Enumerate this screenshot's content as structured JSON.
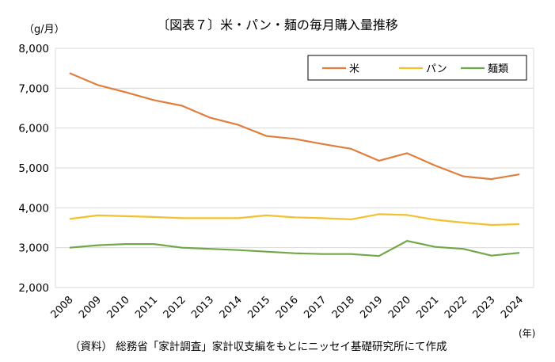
{
  "title": "〔図表７〕米・パン・麺の毎月購入量推移",
  "unit_label": "（g/月）",
  "x_unit_label": "(年)",
  "source": "（資料） 総務省「家計調査」家計収支編をもとにニッセイ基礎研究所にて作成",
  "chart_data": {
    "type": "line",
    "title": "〔図表７〕米・パン・麺の毎月購入量推移",
    "xlabel": "(年)",
    "ylabel": "（g/月）",
    "x": [
      "2008",
      "2009",
      "2010",
      "2011",
      "2012",
      "2013",
      "2014",
      "2015",
      "2016",
      "2017",
      "2018",
      "2019",
      "2020",
      "2021",
      "2022",
      "2023",
      "2024"
    ],
    "ylim": [
      2000,
      8000
    ],
    "yticks": [
      "2,000",
      "3,000",
      "4,000",
      "5,000",
      "6,000",
      "7,000",
      "8,000"
    ],
    "grid": true,
    "legend": "top-right-inside",
    "series": [
      {
        "name": "米",
        "color": "#E07E3C",
        "values": [
          7380,
          7080,
          6900,
          6700,
          6560,
          6260,
          6080,
          5800,
          5730,
          5600,
          5480,
          5180,
          5370,
          5060,
          4790,
          4720,
          4840
        ]
      },
      {
        "name": "パン",
        "color": "#F2C12E",
        "values": [
          3720,
          3810,
          3790,
          3770,
          3740,
          3740,
          3740,
          3810,
          3760,
          3740,
          3710,
          3840,
          3820,
          3700,
          3630,
          3570,
          3590
        ]
      },
      {
        "name": "麺類",
        "color": "#70A848",
        "values": [
          3000,
          3060,
          3090,
          3090,
          3000,
          2970,
          2940,
          2900,
          2860,
          2840,
          2840,
          2790,
          3170,
          3020,
          2970,
          2800,
          2870
        ]
      }
    ]
  }
}
